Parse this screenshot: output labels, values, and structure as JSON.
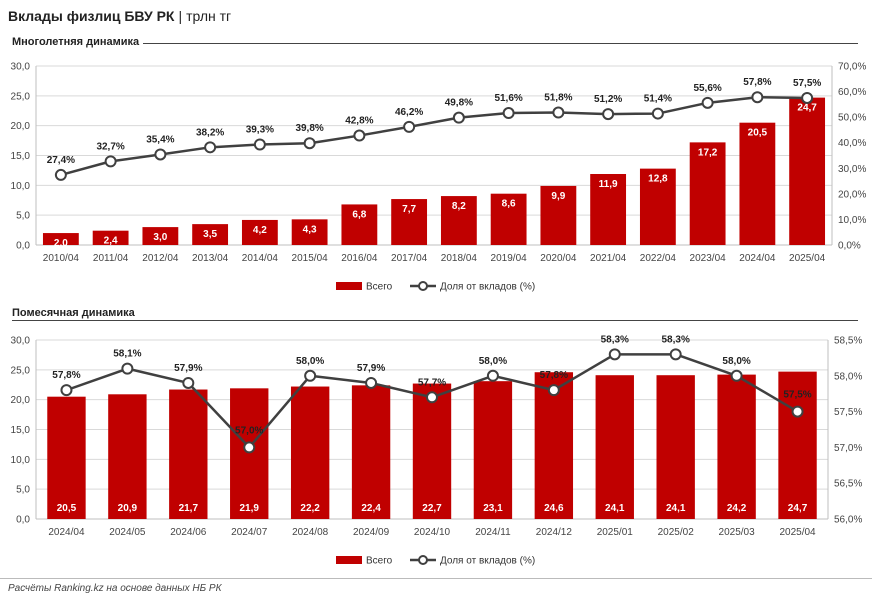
{
  "header": {
    "title": "Вклады физлиц БВУ РК",
    "separator": "|",
    "unit": "трлн тг"
  },
  "colors": {
    "bar": "#c00000",
    "line": "#404040",
    "grid": "#d9d9d9"
  },
  "chart_data": [
    {
      "type": "bar+line",
      "title": "Многолетняя динамика",
      "categories": [
        "2010/04",
        "2011/04",
        "2012/04",
        "2013/04",
        "2014/04",
        "2015/04",
        "2016/04",
        "2017/04",
        "2018/04",
        "2019/04",
        "2020/04",
        "2021/04",
        "2022/04",
        "2023/04",
        "2024/04",
        "2025/04"
      ],
      "series": [
        {
          "name": "Всего",
          "kind": "bar",
          "axis": "left",
          "values": [
            2.0,
            2.4,
            3.0,
            3.5,
            4.2,
            4.3,
            6.8,
            7.7,
            8.2,
            8.6,
            9.9,
            11.9,
            12.8,
            17.2,
            20.5,
            24.7
          ],
          "labels": [
            "2,0",
            "2,4",
            "3,0",
            "3,5",
            "4,2",
            "4,3",
            "6,8",
            "7,7",
            "8,2",
            "8,6",
            "9,9",
            "11,9",
            "12,8",
            "17,2",
            "20,5",
            "24,7"
          ]
        },
        {
          "name": "Доля от вкладов (%)",
          "kind": "line",
          "axis": "right",
          "values": [
            27.4,
            32.7,
            35.4,
            38.2,
            39.3,
            39.8,
            42.8,
            46.2,
            49.8,
            51.6,
            51.8,
            51.2,
            51.4,
            55.6,
            57.8,
            57.5
          ],
          "labels": [
            "27,4%",
            "32,7%",
            "35,4%",
            "38,2%",
            "39,3%",
            "39,8%",
            "42,8%",
            "46,2%",
            "49,8%",
            "51,6%",
            "51,8%",
            "51,2%",
            "51,4%",
            "55,6%",
            "57,8%",
            "57,5%"
          ]
        }
      ],
      "ylim": [
        0,
        30
      ],
      "y2lim": [
        0,
        70
      ],
      "yticks": [
        "0,0",
        "5,0",
        "10,0",
        "15,0",
        "20,0",
        "25,0",
        "30,0"
      ],
      "y2ticks": [
        "0,0%",
        "10,0%",
        "20,0%",
        "30,0%",
        "40,0%",
        "50,0%",
        "60,0%",
        "70,0%"
      ],
      "legend": [
        "Всего",
        "Доля от вкладов (%)"
      ],
      "legend_position": "bottom",
      "grid": true
    },
    {
      "type": "bar+line",
      "title": "Помесячная динамика",
      "categories": [
        "2024/04",
        "2024/05",
        "2024/06",
        "2024/07",
        "2024/08",
        "2024/09",
        "2024/10",
        "2024/11",
        "2024/12",
        "2025/01",
        "2025/02",
        "2025/03",
        "2025/04"
      ],
      "series": [
        {
          "name": "Всего",
          "kind": "bar",
          "axis": "left",
          "values": [
            20.5,
            20.9,
            21.7,
            21.9,
            22.2,
            22.4,
            22.7,
            23.1,
            24.6,
            24.1,
            24.1,
            24.2,
            24.7
          ],
          "labels": [
            "20,5",
            "20,9",
            "21,7",
            "21,9",
            "22,2",
            "22,4",
            "22,7",
            "23,1",
            "24,6",
            "24,1",
            "24,1",
            "24,2",
            "24,7"
          ]
        },
        {
          "name": "Доля от вкладов (%)",
          "kind": "line",
          "axis": "right",
          "values": [
            57.8,
            58.1,
            57.9,
            57.0,
            58.0,
            57.9,
            57.7,
            58.0,
            57.8,
            58.3,
            58.3,
            58.0,
            57.5
          ],
          "labels": [
            "57,8%",
            "58,1%",
            "57,9%",
            "57,0%",
            "58,0%",
            "57,9%",
            "57,7%",
            "58,0%",
            "57,8%",
            "58,3%",
            "58,3%",
            "58,0%",
            "57,5%"
          ]
        }
      ],
      "ylim": [
        0,
        30
      ],
      "y2lim": [
        56,
        58.5
      ],
      "yticks": [
        "0,0",
        "5,0",
        "10,0",
        "15,0",
        "20,0",
        "25,0",
        "30,0"
      ],
      "y2ticks": [
        "56,0%",
        "56,5%",
        "57,0%",
        "57,5%",
        "58,0%",
        "58,5%"
      ],
      "legend": [
        "Всего",
        "Доля от вкладов (%)"
      ],
      "legend_position": "bottom",
      "grid": true
    }
  ],
  "footer": {
    "source": "Расчёты Ranking.kz на основе данных НБ РК"
  }
}
